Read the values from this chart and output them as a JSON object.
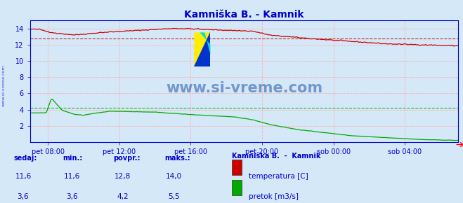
{
  "title": "Kamniška B. - Kamnik",
  "bg_color": "#d4e8f8",
  "plot_bg_color": "#d4e8f8",
  "grid_color": "#ffb0b0",
  "axis_color": "#0000cc",
  "title_color": "#0000cc",
  "watermark_text": "www.si-vreme.com",
  "watermark_color": "#2255aa",
  "x_ticks_labels": [
    "pet 08:00",
    "pet 12:00",
    "pet 16:00",
    "pet 20:00",
    "sob 00:00",
    "sob 04:00"
  ],
  "x_ticks_positions": [
    8,
    12,
    16,
    20,
    24,
    28
  ],
  "xlim": [
    7,
    31
  ],
  "ylim": [
    0,
    15
  ],
  "yticks": [
    2,
    4,
    6,
    8,
    10,
    12,
    14
  ],
  "temp_color": "#cc0000",
  "flow_color": "#00aa00",
  "temp_avg_line": 12.8,
  "flow_avg_line": 4.2,
  "legend_title": "Kamniška B.  -  Kamnik",
  "legend_items": [
    {
      "label": "temperatura [C]",
      "color": "#cc0000"
    },
    {
      "label": "pretok [m3/s]",
      "color": "#00aa00"
    }
  ],
  "table_headers": [
    "sedaj:",
    "min.:",
    "povpr.:",
    "maks.:"
  ],
  "table_data": [
    [
      "11,6",
      "11,6",
      "12,8",
      "14,0"
    ],
    [
      "3,6",
      "3,6",
      "4,2",
      "5,5"
    ]
  ],
  "sidebar_color": "#0000cc"
}
